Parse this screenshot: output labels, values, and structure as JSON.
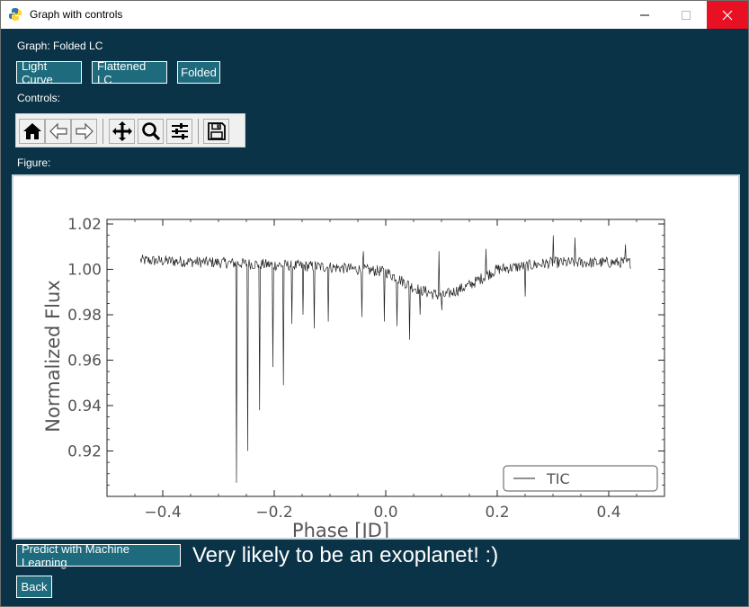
{
  "window": {
    "title": "Graph with controls"
  },
  "labels": {
    "graph": "Graph: Folded LC",
    "controls": "Controls:",
    "figure": "Figure:"
  },
  "tabs": [
    {
      "label": "Light Curve"
    },
    {
      "label": "Flattened LC"
    },
    {
      "label": "Folded"
    }
  ],
  "toolbar": {
    "items": [
      "home-icon",
      "back-arrow-icon",
      "forward-arrow-icon",
      "pan-icon",
      "zoom-icon",
      "subplots-icon",
      "save-icon"
    ]
  },
  "predict": {
    "button_label": "Predict with Machine Learning",
    "result": "Very likely to be an exoplanet! :)"
  },
  "back_label": "Back",
  "colors": {
    "background": "#0b3347",
    "button": "#1d6b7c",
    "close": "#e81123",
    "line": "#222222"
  },
  "chart_data": {
    "type": "line",
    "title": "",
    "xlabel": "Phase [JD]",
    "ylabel": "Normalized Flux",
    "xlim": [
      -0.5,
      0.5
    ],
    "ylim": [
      0.9,
      1.022
    ],
    "xticks": [
      -0.4,
      -0.2,
      0.0,
      0.2,
      0.4
    ],
    "xtick_labels": [
      "−0.4",
      "−0.2",
      "0.0",
      "0.2",
      "0.4"
    ],
    "yticks": [
      0.92,
      0.94,
      0.96,
      0.98,
      1.0,
      1.02
    ],
    "ytick_labels": [
      "0.92",
      "0.94",
      "0.96",
      "0.98",
      "1.00",
      "1.02"
    ],
    "grid": false,
    "legend_position": "lower-right",
    "series": [
      {
        "name": "TIC",
        "x_range": [
          -0.44,
          0.44
        ],
        "baseline_points": [
          [
            -0.44,
            1.004
          ],
          [
            -0.3,
            1.003
          ],
          [
            -0.1,
            1.001
          ],
          [
            0.0,
            0.999
          ],
          [
            0.05,
            0.992
          ],
          [
            0.1,
            0.988
          ],
          [
            0.15,
            0.993
          ],
          [
            0.2,
            1.0
          ],
          [
            0.3,
            1.003
          ],
          [
            0.44,
            1.003
          ]
        ],
        "noise": 0.0025,
        "dips": [
          [
            -0.268,
            0.906
          ],
          [
            -0.248,
            0.92
          ],
          [
            -0.226,
            0.938
          ],
          [
            -0.203,
            0.957
          ],
          [
            -0.184,
            0.949
          ],
          [
            -0.168,
            0.976
          ],
          [
            -0.148,
            0.98
          ],
          [
            -0.128,
            0.974
          ],
          [
            -0.103,
            0.977
          ],
          [
            -0.043,
            0.979
          ],
          [
            -0.002,
            0.977
          ],
          [
            0.02,
            0.975
          ],
          [
            0.043,
            0.969
          ],
          [
            0.062,
            0.98
          ],
          [
            0.1,
            0.982
          ],
          [
            0.25,
            0.988
          ],
          [
            0.3,
            0.99
          ]
        ],
        "spikes": [
          [
            -0.04,
            1.008
          ],
          [
            0.095,
            1.008
          ],
          [
            0.18,
            1.009
          ],
          [
            0.3,
            1.015
          ],
          [
            0.34,
            1.014
          ],
          [
            0.43,
            1.011
          ]
        ]
      }
    ]
  }
}
